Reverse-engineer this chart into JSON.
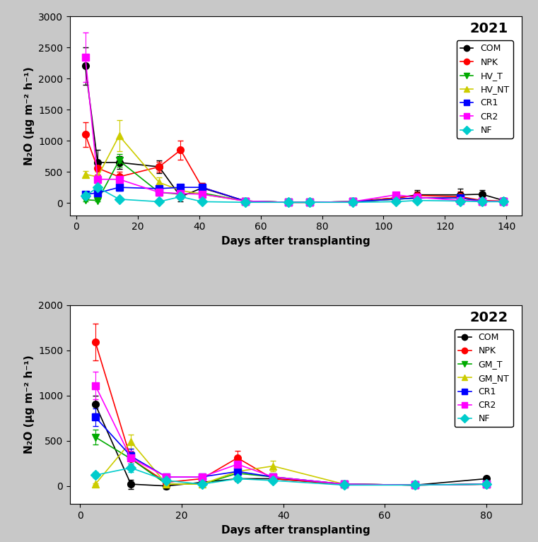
{
  "plot1": {
    "year": "2021",
    "ylim": [
      -200,
      3000
    ],
    "yticks": [
      0,
      500,
      1000,
      1500,
      2000,
      2500,
      3000
    ],
    "xlim": [
      -2,
      145
    ],
    "xticks": [
      0,
      20,
      40,
      60,
      80,
      100,
      120,
      140
    ],
    "series": {
      "COM": {
        "color": "#000000",
        "marker": "o",
        "x": [
          3,
          7,
          14,
          27,
          34,
          41,
          55,
          69,
          76,
          90,
          104,
          111,
          125,
          132,
          139
        ],
        "y": [
          2200,
          650,
          650,
          580,
          100,
          240,
          30,
          10,
          10,
          20,
          80,
          130,
          130,
          140,
          40
        ],
        "yerr": [
          300,
          200,
          100,
          100,
          80,
          80,
          20,
          10,
          10,
          10,
          60,
          80,
          100,
          70,
          30
        ]
      },
      "NPK": {
        "color": "#ff0000",
        "marker": "o",
        "x": [
          3,
          7,
          14,
          27,
          34,
          41,
          55,
          69,
          76,
          90,
          104,
          111,
          125,
          132,
          139
        ],
        "y": [
          1100,
          560,
          420,
          580,
          850,
          250,
          30,
          10,
          10,
          20,
          80,
          120,
          100,
          40,
          30
        ],
        "yerr": [
          200,
          100,
          80,
          80,
          150,
          70,
          20,
          10,
          10,
          10,
          50,
          60,
          80,
          30,
          20
        ]
      },
      "HV_T": {
        "color": "#00aa00",
        "marker": "v",
        "x": [
          3,
          7,
          14,
          27,
          34,
          41,
          55,
          69,
          76,
          90,
          104,
          111,
          125,
          132,
          139
        ],
        "y": [
          50,
          40,
          680,
          170,
          140,
          160,
          30,
          10,
          10,
          20,
          60,
          80,
          80,
          30,
          20
        ],
        "yerr": [
          20,
          20,
          100,
          50,
          50,
          40,
          10,
          5,
          5,
          5,
          20,
          30,
          30,
          10,
          10
        ]
      },
      "HV_NT": {
        "color": "#cccc00",
        "marker": "^",
        "x": [
          3,
          7,
          14,
          27,
          34,
          41,
          55,
          69,
          76,
          90,
          104,
          111,
          125,
          132,
          139
        ],
        "y": [
          460,
          420,
          1080,
          330,
          200,
          140,
          30,
          10,
          10,
          20,
          60,
          80,
          80,
          30,
          20
        ],
        "yerr": [
          50,
          80,
          250,
          80,
          60,
          40,
          10,
          5,
          5,
          5,
          20,
          30,
          30,
          10,
          10
        ]
      },
      "CR1": {
        "color": "#0000ff",
        "marker": "s",
        "x": [
          3,
          7,
          14,
          27,
          34,
          41,
          55,
          69,
          76,
          90,
          104,
          111,
          125,
          132,
          139
        ],
        "y": [
          140,
          160,
          250,
          230,
          250,
          250,
          30,
          10,
          10,
          20,
          60,
          80,
          80,
          30,
          20
        ],
        "yerr": [
          30,
          30,
          50,
          50,
          50,
          50,
          10,
          5,
          5,
          5,
          20,
          30,
          30,
          10,
          10
        ]
      },
      "CR2": {
        "color": "#ff00ff",
        "marker": "s",
        "x": [
          3,
          7,
          14,
          27,
          34,
          41,
          55,
          69,
          76,
          90,
          104,
          111,
          125,
          132,
          139
        ],
        "y": [
          2340,
          380,
          380,
          170,
          150,
          140,
          30,
          10,
          10,
          20,
          130,
          90,
          40,
          30,
          20
        ],
        "yerr": [
          400,
          60,
          60,
          40,
          40,
          40,
          10,
          5,
          5,
          5,
          40,
          30,
          20,
          10,
          10
        ]
      },
      "NF": {
        "color": "#00cccc",
        "marker": "D",
        "x": [
          3,
          7,
          14,
          27,
          34,
          41,
          55,
          69,
          76,
          90,
          104,
          111,
          125,
          132,
          139
        ],
        "y": [
          110,
          250,
          60,
          20,
          100,
          20,
          10,
          10,
          10,
          10,
          20,
          40,
          30,
          20,
          20
        ],
        "yerr": [
          20,
          50,
          20,
          10,
          20,
          10,
          5,
          5,
          5,
          5,
          10,
          10,
          10,
          5,
          5
        ]
      }
    }
  },
  "plot2": {
    "year": "2022",
    "ylim": [
      -200,
      2000
    ],
    "yticks": [
      0,
      500,
      1000,
      1500,
      2000
    ],
    "xlim": [
      -2,
      87
    ],
    "xticks": [
      0,
      20,
      40,
      60,
      80
    ],
    "series": {
      "COM": {
        "color": "#000000",
        "marker": "o",
        "x": [
          3,
          10,
          17,
          24,
          31,
          38,
          52,
          66,
          80
        ],
        "y": [
          900,
          20,
          0,
          40,
          80,
          80,
          20,
          10,
          80
        ],
        "yerr": [
          100,
          50,
          30,
          20,
          30,
          30,
          10,
          5,
          30
        ]
      },
      "NPK": {
        "color": "#ff0000",
        "marker": "o",
        "x": [
          3,
          10,
          17,
          24,
          31,
          38,
          52,
          66,
          80
        ],
        "y": [
          1590,
          300,
          40,
          80,
          310,
          80,
          20,
          10,
          20
        ],
        "yerr": [
          200,
          80,
          20,
          30,
          80,
          30,
          10,
          5,
          10
        ]
      },
      "GM_T": {
        "color": "#00aa00",
        "marker": "v",
        "x": [
          3,
          10,
          17,
          24,
          31,
          38,
          52,
          66,
          80
        ],
        "y": [
          540,
          300,
          20,
          20,
          140,
          100,
          20,
          10,
          20
        ],
        "yerr": [
          80,
          80,
          10,
          10,
          40,
          30,
          10,
          5,
          10
        ]
      },
      "GM_NT": {
        "color": "#cccc00",
        "marker": "^",
        "x": [
          3,
          10,
          17,
          24,
          31,
          38,
          52,
          66,
          80
        ],
        "y": [
          20,
          490,
          20,
          20,
          160,
          220,
          20,
          10,
          20
        ],
        "yerr": [
          10,
          80,
          10,
          10,
          40,
          60,
          10,
          5,
          10
        ]
      },
      "CR1": {
        "color": "#0000ff",
        "marker": "s",
        "x": [
          3,
          10,
          17,
          24,
          31,
          38,
          52,
          66,
          80
        ],
        "y": [
          760,
          330,
          100,
          100,
          160,
          100,
          20,
          10,
          20
        ],
        "yerr": [
          100,
          80,
          30,
          30,
          40,
          30,
          10,
          5,
          10
        ]
      },
      "CR2": {
        "color": "#ff00ff",
        "marker": "s",
        "x": [
          3,
          10,
          17,
          24,
          31,
          38,
          52,
          66,
          80
        ],
        "y": [
          1110,
          310,
          100,
          100,
          240,
          100,
          20,
          10,
          20
        ],
        "yerr": [
          150,
          80,
          30,
          30,
          60,
          30,
          10,
          5,
          10
        ]
      },
      "NF": {
        "color": "#00cccc",
        "marker": "D",
        "x": [
          3,
          10,
          17,
          24,
          31,
          38,
          52,
          66,
          80
        ],
        "y": [
          120,
          200,
          60,
          20,
          80,
          60,
          10,
          10,
          20
        ],
        "yerr": [
          30,
          50,
          20,
          10,
          20,
          20,
          5,
          5,
          10
        ]
      }
    }
  },
  "ylabel": "N₂O (μg m⁻² h⁻¹)",
  "xlabel": "Days after transplanting",
  "bg_color": "#c8c8c8",
  "plot_bg": "#ffffff",
  "marker_size": 7,
  "line_width": 1.2,
  "capsize": 3,
  "legend_fontsize": 9,
  "axis_fontsize": 11,
  "tick_fontsize": 10,
  "year_fontsize": 14
}
